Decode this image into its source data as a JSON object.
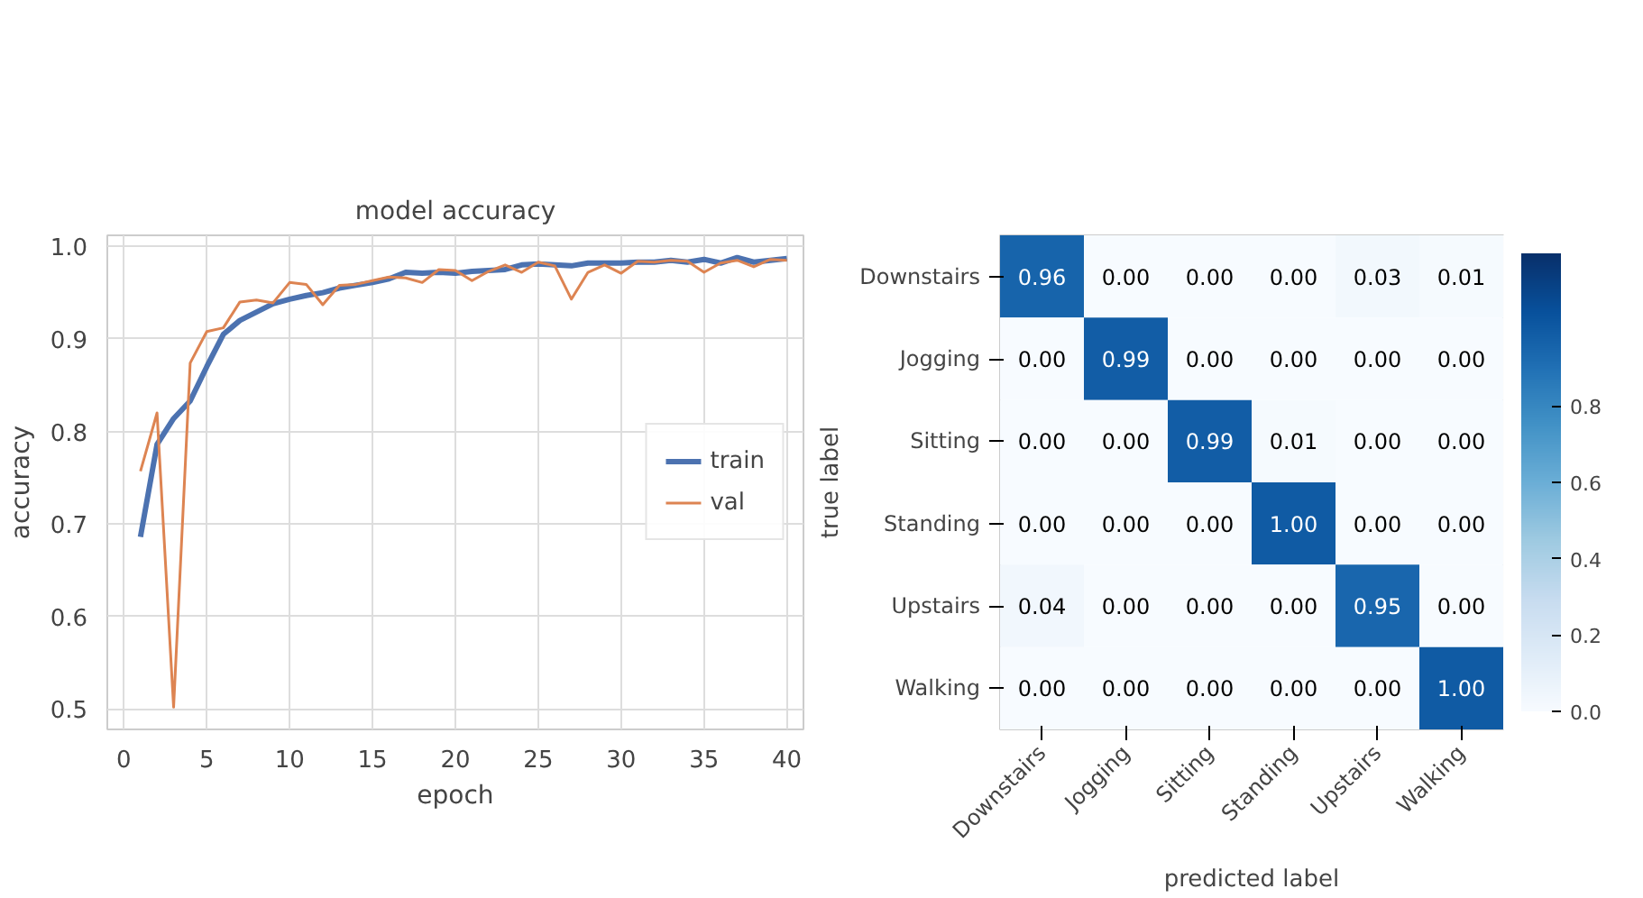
{
  "chart_data": [
    {
      "type": "line",
      "title": "model accuracy",
      "xlabel": "epoch",
      "ylabel": "accuracy",
      "x": [
        1,
        2,
        3,
        4,
        5,
        6,
        7,
        8,
        9,
        10,
        11,
        12,
        13,
        14,
        15,
        16,
        17,
        18,
        19,
        20,
        21,
        22,
        23,
        24,
        25,
        26,
        27,
        28,
        29,
        30,
        31,
        32,
        33,
        34,
        35,
        36,
        37,
        38,
        39,
        40
      ],
      "series": [
        {
          "name": "train",
          "color": "#4c72b0",
          "values": [
            0.686,
            0.786,
            0.814,
            0.833,
            0.87,
            0.905,
            0.92,
            0.929,
            0.938,
            0.943,
            0.947,
            0.95,
            0.955,
            0.958,
            0.961,
            0.965,
            0.972,
            0.971,
            0.972,
            0.971,
            0.973,
            0.974,
            0.975,
            0.98,
            0.981,
            0.98,
            0.979,
            0.982,
            0.982,
            0.982,
            0.983,
            0.983,
            0.985,
            0.983,
            0.986,
            0.982,
            0.988,
            0.983,
            0.985,
            0.987
          ]
        },
        {
          "name": "val",
          "color": "#dd8452",
          "values": [
            0.757,
            0.82,
            0.502,
            0.874,
            0.908,
            0.912,
            0.94,
            0.942,
            0.939,
            0.961,
            0.959,
            0.937,
            0.958,
            0.959,
            0.963,
            0.967,
            0.966,
            0.961,
            0.975,
            0.974,
            0.963,
            0.973,
            0.98,
            0.972,
            0.983,
            0.979,
            0.943,
            0.972,
            0.98,
            0.971,
            0.984,
            0.983,
            0.985,
            0.984,
            0.972,
            0.982,
            0.985,
            0.978,
            0.986,
            0.985
          ]
        }
      ],
      "xlim": [
        -1,
        41
      ],
      "ylim": [
        0.478,
        1.012
      ],
      "xticks": [
        0,
        5,
        10,
        15,
        20,
        25,
        30,
        35,
        40
      ],
      "yticks": [
        0.5,
        0.6,
        0.7,
        0.8,
        0.9,
        {
          "value": 1,
          "label": "1.0"
        }
      ],
      "grid": true,
      "legend": "right",
      "line_style": "solid",
      "marker": "none"
    },
    {
      "type": "heatmap",
      "xlabel": "predicted label",
      "ylabel": "true label",
      "categories": [
        "Downstairs",
        "Jogging",
        "Sitting",
        "Standing",
        "Upstairs",
        "Walking"
      ],
      "y_categories": [
        "Downstairs",
        "Jogging",
        "Sitting",
        "Standing",
        "Upstairs",
        "Walking"
      ],
      "cells": [
        [
          0.96,
          0.0,
          0.0,
          0.0,
          0.03,
          0.01
        ],
        [
          0.0,
          0.99,
          0.0,
          0.0,
          0.0,
          0.0
        ],
        [
          0.0,
          0.0,
          0.99,
          0.01,
          0.0,
          0.0
        ],
        [
          0.0,
          0.0,
          0.0,
          1.0,
          0.0,
          0.0
        ],
        [
          0.04,
          0.0,
          0.0,
          0.0,
          0.95,
          0.0
        ],
        [
          0.0,
          0.0,
          0.0,
          0.0,
          0.0,
          1.0
        ]
      ],
      "cell_labels": [
        [
          "0.96",
          "0.00",
          "0.00",
          "0.00",
          "0.03",
          "0.01"
        ],
        [
          "0.00",
          "0.99",
          "0.00",
          "0.00",
          "0.00",
          "0.00"
        ],
        [
          "0.00",
          "0.00",
          "0.99",
          "0.01",
          "0.00",
          "0.00"
        ],
        [
          "0.00",
          "0.00",
          "0.00",
          "1.00",
          "0.00",
          "0.00"
        ],
        [
          "0.04",
          "0.00",
          "0.00",
          "0.00",
          "0.95",
          "0.00"
        ],
        [
          "0.00",
          "0.00",
          "0.00",
          "0.00",
          "0.00",
          "1.00"
        ]
      ],
      "clim": [
        0,
        1.2
      ],
      "cticks": [
        {
          "value": 0,
          "label": "0.0"
        },
        0.2,
        0.4,
        0.6,
        0.8
      ]
    }
  ]
}
